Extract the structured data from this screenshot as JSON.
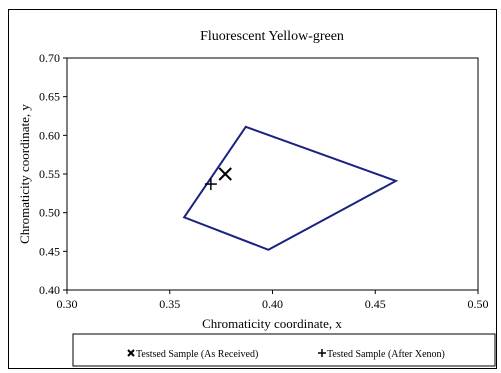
{
  "chart_data": {
    "type": "scatter",
    "title": "Fluorescent Yellow-green",
    "xlabel": "Chromaticity coordinate, x",
    "ylabel": "Chromaticity coordinate, y",
    "xlim": [
      0.3,
      0.5
    ],
    "ylim": [
      0.4,
      0.7
    ],
    "x_ticks": [
      "0.30",
      "0.35",
      "0.40",
      "0.45",
      "0.50"
    ],
    "y_ticks": [
      "0.40",
      "0.45",
      "0.50",
      "0.55",
      "0.60",
      "0.65",
      "0.70"
    ],
    "grid": false,
    "legend_position": "bottom",
    "boundary": {
      "color": "#1a237e",
      "points": [
        {
          "x": 0.357,
          "y": 0.494
        },
        {
          "x": 0.387,
          "y": 0.611
        },
        {
          "x": 0.46,
          "y": 0.541
        },
        {
          "x": 0.398,
          "y": 0.452
        }
      ]
    },
    "series": [
      {
        "name": "Testsed Sample (As Received)",
        "marker": "x",
        "x": [
          0.377
        ],
        "y": [
          0.55
        ]
      },
      {
        "name": "Tested Sample (After Xenon)",
        "marker": "+",
        "x": [
          0.37
        ],
        "y": [
          0.537
        ]
      }
    ]
  }
}
